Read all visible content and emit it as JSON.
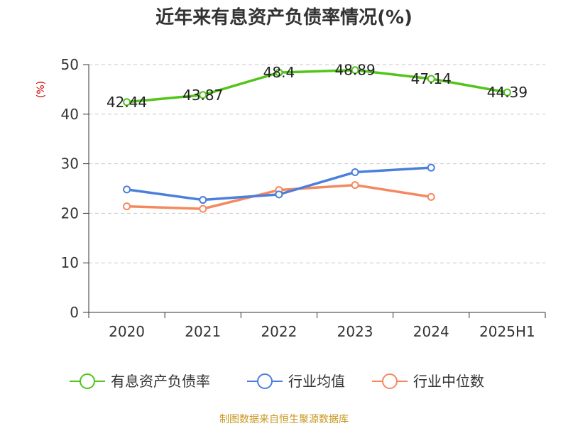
{
  "chart_data": {
    "type": "line",
    "title": "近年来有息资产负债率情况(%)",
    "ylabel": "(%)",
    "xlabel": "",
    "categories": [
      "2020",
      "2021",
      "2022",
      "2023",
      "2024",
      "2025H1"
    ],
    "ylim": [
      0,
      50
    ],
    "yticks": [
      0,
      10,
      20,
      30,
      40,
      50
    ],
    "grid": true,
    "legend_position": "bottom",
    "series": [
      {
        "name": "有息资产负债率",
        "color": "#52c41a",
        "values": [
          42.44,
          43.87,
          48.4,
          48.89,
          47.14,
          44.39
        ],
        "labels": [
          "42.44",
          "43.87",
          "48.4",
          "48.89",
          "47.14",
          "44.39"
        ]
      },
      {
        "name": "行业均值",
        "color": "#4a7fdc",
        "values": [
          24.8,
          22.7,
          23.8,
          28.3,
          29.2,
          null
        ]
      },
      {
        "name": "行业中位数",
        "color": "#f4895f",
        "values": [
          21.4,
          20.9,
          24.7,
          25.7,
          23.3,
          null
        ]
      }
    ],
    "source": "制图数据来自恒生聚源数据库"
  }
}
